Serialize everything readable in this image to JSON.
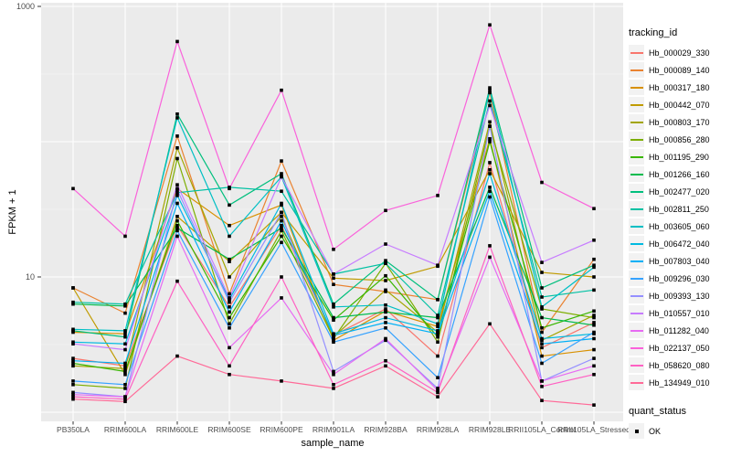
{
  "figure": {
    "background": "#FFFFFF",
    "panel_bg": "#EBEBEB",
    "grid_color": "#FFFFFF",
    "tick_color": "#333333",
    "tick_label_color": "#4D4D4D",
    "point_color": "#000000"
  },
  "axes": {
    "x_title": "sample_name",
    "y_title": "FPKM + 1"
  },
  "legend": {
    "tracking_title": "tracking_id",
    "quant_title": "quant_status",
    "quant_ok_label": "OK"
  },
  "chart_data": {
    "type": "line",
    "title": "",
    "xlabel": "sample_name",
    "ylabel": "FPKM + 1",
    "y_scale": "log10",
    "ylim": [
      0.9,
      1100
    ],
    "grid": true,
    "legend_position": "right",
    "point": {
      "shape": "filled-square",
      "color": "#000000",
      "legend_label": "OK"
    },
    "yticks": [
      {
        "value": 1000,
        "label": "1000"
      },
      {
        "value": 10,
        "label": "10"
      }
    ],
    "major_gridlines": [
      1,
      10,
      100,
      1000
    ],
    "minor_gridlines": [
      3.162,
      31.62,
      316.2
    ],
    "categories": [
      "PB350LA",
      "RRIM600LA",
      "RRIM600LE",
      "RRIM600SE",
      "RRIM600PE",
      "RRIM901LA",
      "RRIM928BA",
      "RRIM928LA",
      "RRIM928LE",
      "RRII105LA_Control",
      "RRII105LA_Stressed"
    ],
    "series": [
      {
        "name": "Hb_000029_330",
        "color": "#F8766D",
        "values": [
          2.5,
          2.2,
          24,
          6.0,
          24,
          3.7,
          5.8,
          2.6,
          70,
          3.0,
          4.6
        ]
      },
      {
        "name": "Hb_000089_140",
        "color": "#EA8331",
        "values": [
          8.3,
          5.4,
          110,
          7.5,
          72,
          8.8,
          7.8,
          6.8,
          230,
          3.9,
          13.5
        ]
      },
      {
        "name": "Hb_000317_180",
        "color": "#D89000",
        "values": [
          3.9,
          3.8,
          45,
          24,
          34,
          3.4,
          5.6,
          4.3,
          105,
          2.6,
          2.9
        ]
      },
      {
        "name": "Hb_000442_070",
        "color": "#C09B00",
        "values": [
          8.3,
          1.9,
          28,
          13,
          30,
          9.8,
          9.4,
          12.0,
          62,
          10.8,
          10.0
        ]
      },
      {
        "name": "Hb_000803_170",
        "color": "#A3A500",
        "values": [
          2.2,
          2.1,
          90,
          10,
          28,
          3.6,
          8.0,
          3.9,
          140,
          3.4,
          5.2
        ]
      },
      {
        "name": "Hb_000856_280",
        "color": "#7CAE00",
        "values": [
          1.6,
          1.5,
          75,
          4.5,
          22,
          3.5,
          12.6,
          3.3,
          130,
          5.8,
          5.0
        ]
      },
      {
        "name": "Hb_001195_290",
        "color": "#39B600",
        "values": [
          2.3,
          2.0,
          26,
          5.0,
          20,
          4.8,
          10.2,
          3.6,
          100,
          4.2,
          5.6
        ]
      },
      {
        "name": "Hb_001266_160",
        "color": "#00BB4E",
        "values": [
          6.3,
          6.1,
          23,
          13.5,
          23,
          5.0,
          5.5,
          5.0,
          46,
          5.0,
          4.4
        ]
      },
      {
        "name": "Hb_002477_020",
        "color": "#00BF7D",
        "values": [
          4.0,
          3.6,
          160,
          34,
          58,
          6.3,
          13.2,
          6.8,
          250,
          8.3,
          12.2
        ]
      },
      {
        "name": "Hb_002811_250",
        "color": "#00C1A3",
        "values": [
          6.5,
          6.3,
          42,
          46,
          43,
          10.5,
          12.6,
          5.2,
          200,
          7.1,
          8.0
        ]
      },
      {
        "name": "Hb_003605_060",
        "color": "#00BFC4",
        "values": [
          4.1,
          4.0,
          150,
          20,
          55,
          6.0,
          6.2,
          4.5,
          240,
          6.0,
          11.8
        ]
      },
      {
        "name": "Hb_006472_040",
        "color": "#00BAE0",
        "values": [
          3.3,
          3.2,
          40,
          6.8,
          35,
          3.8,
          5.0,
          4.0,
          58,
          3.5,
          3.8
        ]
      },
      {
        "name": "Hb_007803_040",
        "color": "#00B0F6",
        "values": [
          2.4,
          2.3,
          35,
          5.5,
          26,
          3.7,
          4.6,
          3.8,
          43,
          3.2,
          3.5
        ]
      },
      {
        "name": "Hb_009296_030",
        "color": "#35A2FF",
        "values": [
          1.7,
          1.6,
          22,
          4.2,
          18,
          3.3,
          4.2,
          1.8,
          39,
          2.3,
          3.9
        ]
      },
      {
        "name": "Hb_009393_130",
        "color": "#9590FF",
        "values": [
          1.4,
          1.3,
          44,
          6.5,
          30,
          2.0,
          3.4,
          1.5,
          130,
          1.7,
          2.5
        ]
      },
      {
        "name": "Hb_010557_010",
        "color": "#C77CFF",
        "values": [
          3.2,
          2.9,
          48,
          7.0,
          55,
          10.5,
          17.5,
          12.2,
          185,
          12.8,
          18.7
        ]
      },
      {
        "name": "Hb_011282_040",
        "color": "#E76BF3",
        "values": [
          1.35,
          1.3,
          20,
          3.0,
          7.0,
          1.9,
          3.5,
          1.45,
          14,
          1.7,
          2.2
        ]
      },
      {
        "name": "Hb_022137_050",
        "color": "#FA62DB",
        "values": [
          45,
          20,
          550,
          45,
          240,
          16,
          31,
          40,
          730,
          50,
          32
        ]
      },
      {
        "name": "Hb_058620_080",
        "color": "#FF61C3",
        "values": [
          1.3,
          1.25,
          9.3,
          2.2,
          10,
          1.6,
          2.4,
          1.4,
          17,
          1.55,
          1.9
        ]
      },
      {
        "name": "Hb_134949_010",
        "color": "#FF6A98",
        "values": [
          1.25,
          1.2,
          2.6,
          1.9,
          1.7,
          1.5,
          2.2,
          1.3,
          4.5,
          1.22,
          1.13
        ]
      }
    ]
  }
}
